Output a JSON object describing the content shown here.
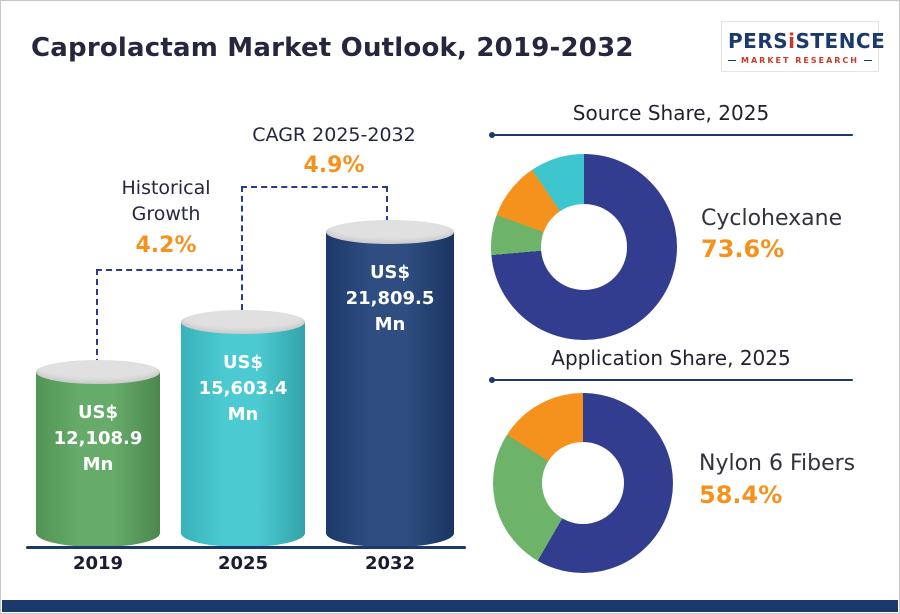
{
  "title": "Caprolactam Market Outlook, 2019-2032",
  "logo": {
    "text_pre": "PERS",
    "text_i": "i",
    "text_post": "STENCE",
    "tagline": "MARKET RESEARCH"
  },
  "colors": {
    "accent_orange": "#f5921e",
    "navy": "#1b3a6b",
    "dashed_line": "#2b3990"
  },
  "chart_data": [
    {
      "type": "bar",
      "title": "Caprolactam Market Outlook, 2019-2032",
      "categories": [
        "2019",
        "2025",
        "2032"
      ],
      "values": [
        12108.9,
        15603.4,
        21809.5
      ],
      "ylabel": "US$ Mn",
      "bars": [
        {
          "year": "2019",
          "value": 12108.9,
          "l1": "US$",
          "l2": "12,108.9",
          "l3": "Mn",
          "color": "#5ba55f"
        },
        {
          "year": "2025",
          "value": 15603.4,
          "l1": "US$",
          "l2": "15,603.4",
          "l3": "Mn",
          "color": "#3ec6ce"
        },
        {
          "year": "2032",
          "value": 21809.5,
          "l1": "US$",
          "l2": "21,809.5",
          "l3": "Mn",
          "color": "#1f4077"
        }
      ],
      "annotations": {
        "historical": {
          "label": "Historical Growth",
          "value": "4.2%"
        },
        "cagr": {
          "label": "CAGR 2025-2032",
          "value": "4.9%"
        }
      }
    },
    {
      "type": "pie",
      "title": "Source Share, 2025",
      "highlight": {
        "label": "Cyclohexane",
        "value": "73.6%"
      },
      "segments": [
        {
          "label": "Cyclohexane",
          "value": 73.6,
          "color": "#333d8f"
        },
        {
          "label": "",
          "value": 7.0,
          "color": "#6db36a"
        },
        {
          "label": "",
          "value": 10.0,
          "color": "#f5921e"
        },
        {
          "label": "",
          "value": 9.4,
          "color": "#3ec6ce"
        }
      ]
    },
    {
      "type": "pie",
      "title": "Application Share, 2025",
      "highlight": {
        "label": "Nylon 6 Fibers",
        "value": "58.4%"
      },
      "segments": [
        {
          "label": "Nylon 6 Fibers",
          "value": 58.4,
          "color": "#333d8f"
        },
        {
          "label": "",
          "value": 25.6,
          "color": "#6db36a"
        },
        {
          "label": "",
          "value": 16.0,
          "color": "#f5921e"
        }
      ]
    }
  ]
}
